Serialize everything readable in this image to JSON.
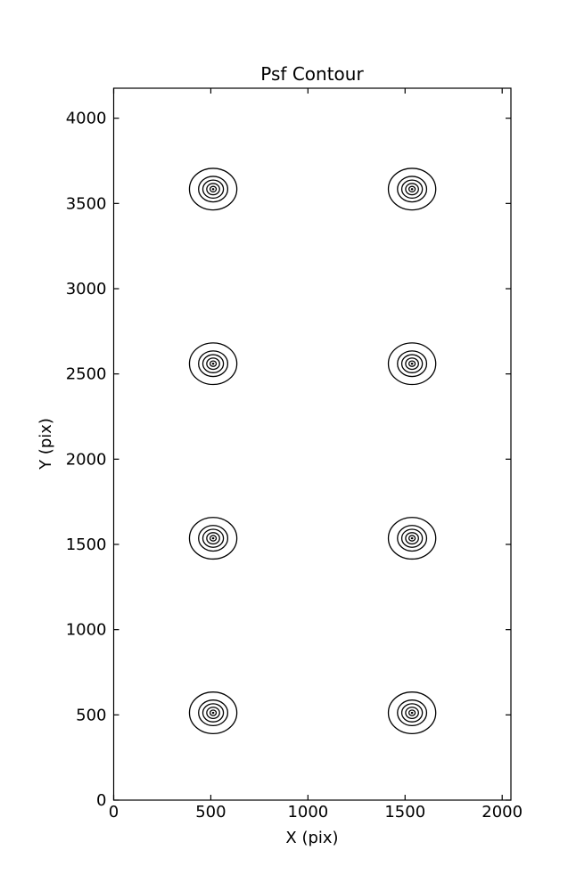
{
  "chart_data": {
    "type": "contour",
    "title": "Psf Contour",
    "xlabel": "X (pix)",
    "ylabel": "Y (pix)",
    "xlim": [
      0,
      2045
    ],
    "ylim": [
      0,
      4176
    ],
    "xticks": [
      0,
      500,
      1000,
      1500,
      2000
    ],
    "yticks": [
      0,
      500,
      1000,
      1500,
      2000,
      2500,
      3000,
      3500,
      4000
    ],
    "grid": false,
    "legend": "none",
    "line_color": "#000000",
    "background_color": "#ffffff",
    "psf_centers": [
      {
        "x": 512,
        "y": 512
      },
      {
        "x": 1536,
        "y": 512
      },
      {
        "x": 512,
        "y": 1536
      },
      {
        "x": 1536,
        "y": 1536
      },
      {
        "x": 512,
        "y": 2560
      },
      {
        "x": 1536,
        "y": 2560
      },
      {
        "x": 512,
        "y": 3584
      },
      {
        "x": 1536,
        "y": 3584
      }
    ],
    "contour_radii_pix": [
      122,
      75,
      53,
      33,
      16
    ],
    "center_dot_radius_pix": 6
  }
}
